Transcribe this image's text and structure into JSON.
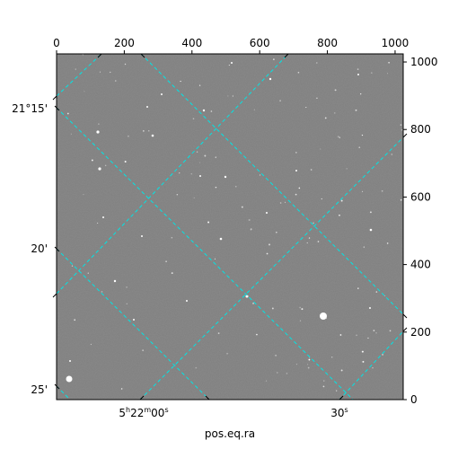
{
  "figure": {
    "type": "astronomical-image-with-wcs-grid",
    "image_tone": "grayscale star field",
    "grid_color": "#00e5e5",
    "axis_label_bottom": "pos.eq.ra",
    "pixel_axes": {
      "top_ticks": [
        "0",
        "200",
        "400",
        "600",
        "800",
        "1000"
      ],
      "right_ticks": [
        "0",
        "200",
        "400",
        "600",
        "800",
        "1000"
      ],
      "x_range": [
        0,
        1024
      ],
      "y_range": [
        0,
        1024
      ]
    },
    "world_axes": {
      "dec_ticks": [
        "21°15'",
        "20'",
        "25'"
      ],
      "ra_ticks": [
        "5h22m00s",
        "30s"
      ]
    }
  }
}
